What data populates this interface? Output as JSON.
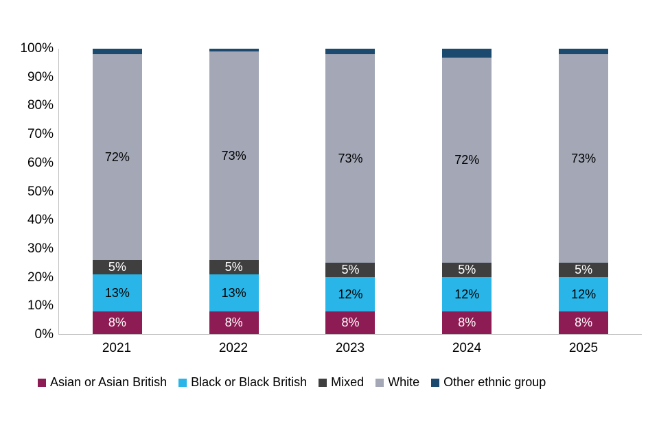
{
  "chart_data": {
    "type": "bar",
    "stacked": true,
    "title": "",
    "xlabel": "",
    "ylabel": "",
    "ylim": [
      0,
      100
    ],
    "ytick_step": 10,
    "ytick_suffix": "%",
    "grid": false,
    "legend_position": "bottom",
    "axis_color": "#bfbfbf",
    "text_color": "#000000",
    "categories": [
      "2021",
      "2022",
      "2023",
      "2024",
      "2025"
    ],
    "series": [
      {
        "name": "Asian or Asian British",
        "color": "#8e1c54",
        "label_color": "#ffffff",
        "show_labels": true,
        "values": [
          8,
          8,
          8,
          8,
          8
        ]
      },
      {
        "name": "Black or Black British",
        "color": "#29b5e8",
        "label_color": "#000000",
        "show_labels": true,
        "values": [
          13,
          13,
          12,
          12,
          12
        ]
      },
      {
        "name": "Mixed",
        "color": "#3f3f3f",
        "label_color": "#ffffff",
        "show_labels": true,
        "values": [
          5,
          5,
          5,
          5,
          5
        ]
      },
      {
        "name": "White",
        "color": "#a3a7b6",
        "label_color": "#000000",
        "show_labels": true,
        "values": [
          72,
          73,
          73,
          72,
          73
        ]
      },
      {
        "name": "Other ethnic group",
        "color": "#1c4a6e",
        "label_color": "#ffffff",
        "show_labels": false,
        "values": [
          2,
          1,
          2,
          3,
          2
        ]
      }
    ]
  }
}
